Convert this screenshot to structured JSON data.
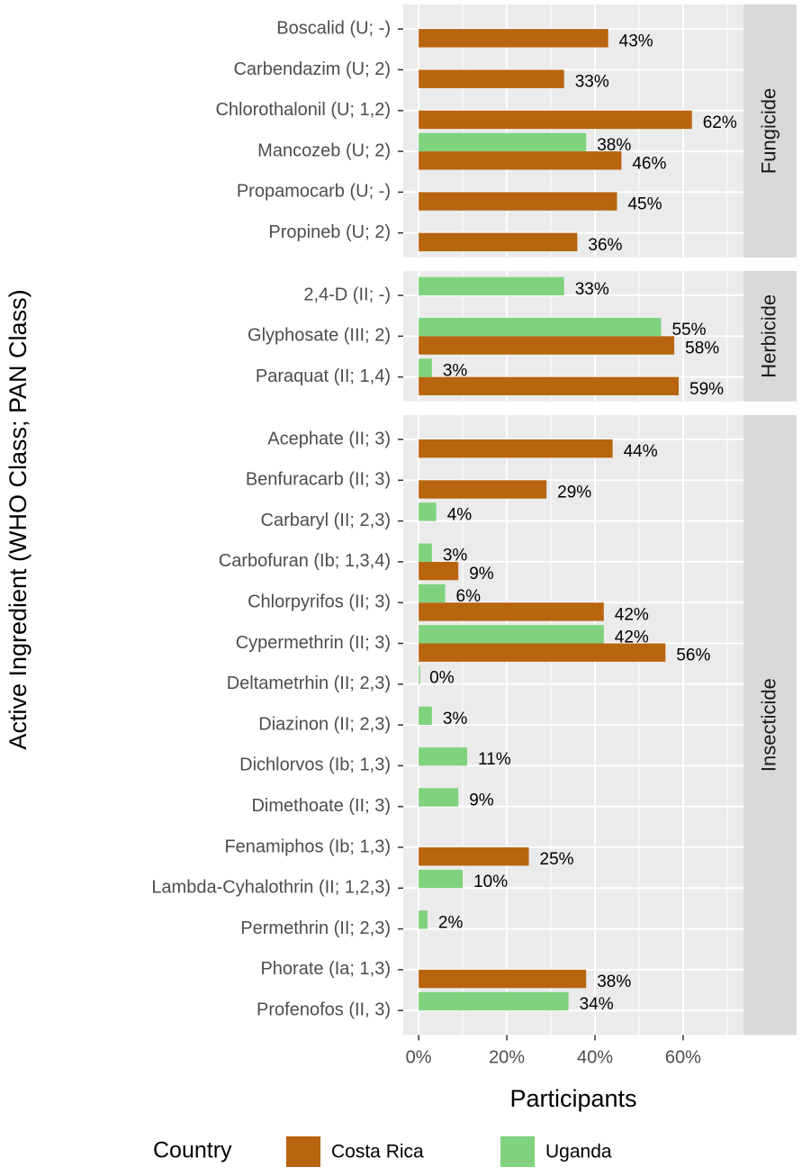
{
  "chart_data": {
    "type": "bar",
    "orientation": "horizontal",
    "xlabel": "Participants",
    "ylabel": "Active Ingredient (WHO Class; PAN Class)",
    "legend_title": "Country",
    "legend_position": "bottom",
    "grid": true,
    "xlim": [
      -3.5,
      73.7
    ],
    "xticks": [
      {
        "value": 0,
        "label": "0%"
      },
      {
        "value": 20,
        "label": "20%"
      },
      {
        "value": 40,
        "label": "40%"
      },
      {
        "value": 60,
        "label": "60%"
      }
    ],
    "series": [
      {
        "name": "Costa Rica",
        "color": "#b8650f"
      },
      {
        "name": "Uganda",
        "color": "#80d27f"
      }
    ],
    "facets": [
      {
        "label": "Fungicide",
        "categories": [
          "Boscalid (U; -)",
          "Carbendazim (U; 2)",
          "Chlorothalonil (U; 1,2)",
          "Mancozeb (U; 2)",
          "Propamocarb (U; -)",
          "Propineb (U; 2)"
        ],
        "series": [
          {
            "values": [
              43,
              33,
              62,
              46,
              45,
              36
            ],
            "value_labels": [
              "43%",
              "33%",
              "62%",
              "46%",
              "45%",
              "36%"
            ]
          },
          {
            "values": [
              null,
              null,
              null,
              38,
              null,
              null
            ],
            "value_labels": [
              null,
              null,
              null,
              "38%",
              null,
              null
            ]
          }
        ]
      },
      {
        "label": "Herbicide",
        "categories": [
          "2,4-D (II; -)",
          "Glyphosate (III; 2)",
          "Paraquat (II; 1,4)"
        ],
        "series": [
          {
            "values": [
              null,
              58,
              59
            ],
            "value_labels": [
              null,
              "58%",
              "59%"
            ]
          },
          {
            "values": [
              33,
              55,
              3
            ],
            "value_labels": [
              "33%",
              "55%",
              "3%"
            ]
          }
        ]
      },
      {
        "label": "Insecticide",
        "categories": [
          "Acephate (II; 3)",
          "Benfuracarb (II; 3)",
          "Carbaryl (II; 2,3)",
          "Carbofuran (Ib; 1,3,4)",
          "Chlorpyrifos (II; 3)",
          "Cypermethrin (II; 3)",
          "Deltametrhin (II; 2,3)",
          "Diazinon (II; 2,3)",
          "Dichlorvos (Ib; 1,3)",
          "Dimethoate (II; 3)",
          "Fenamiphos (Ib; 1,3)",
          "Lambda-Cyhalothrin (II; 1,2,3)",
          "Permethrin (II; 2,3)",
          "Phorate (Ia; 1,3)",
          "Profenofos (II, 3)"
        ],
        "series": [
          {
            "values": [
              44,
              29,
              null,
              9,
              42,
              56,
              null,
              null,
              null,
              null,
              25,
              null,
              null,
              38,
              null
            ],
            "value_labels": [
              "44%",
              "29%",
              null,
              "9%",
              "42%",
              "56%",
              null,
              null,
              null,
              null,
              "25%",
              null,
              null,
              "38%",
              null
            ]
          },
          {
            "values": [
              null,
              null,
              4,
              3,
              6,
              42,
              0,
              3,
              11,
              9,
              null,
              10,
              2,
              null,
              34
            ],
            "value_labels": [
              null,
              null,
              "4%",
              "3%",
              "6%",
              "42%",
              "0%",
              "3%",
              "11%",
              "9%",
              null,
              "10%",
              "2%",
              null,
              "34%"
            ]
          }
        ]
      }
    ]
  }
}
